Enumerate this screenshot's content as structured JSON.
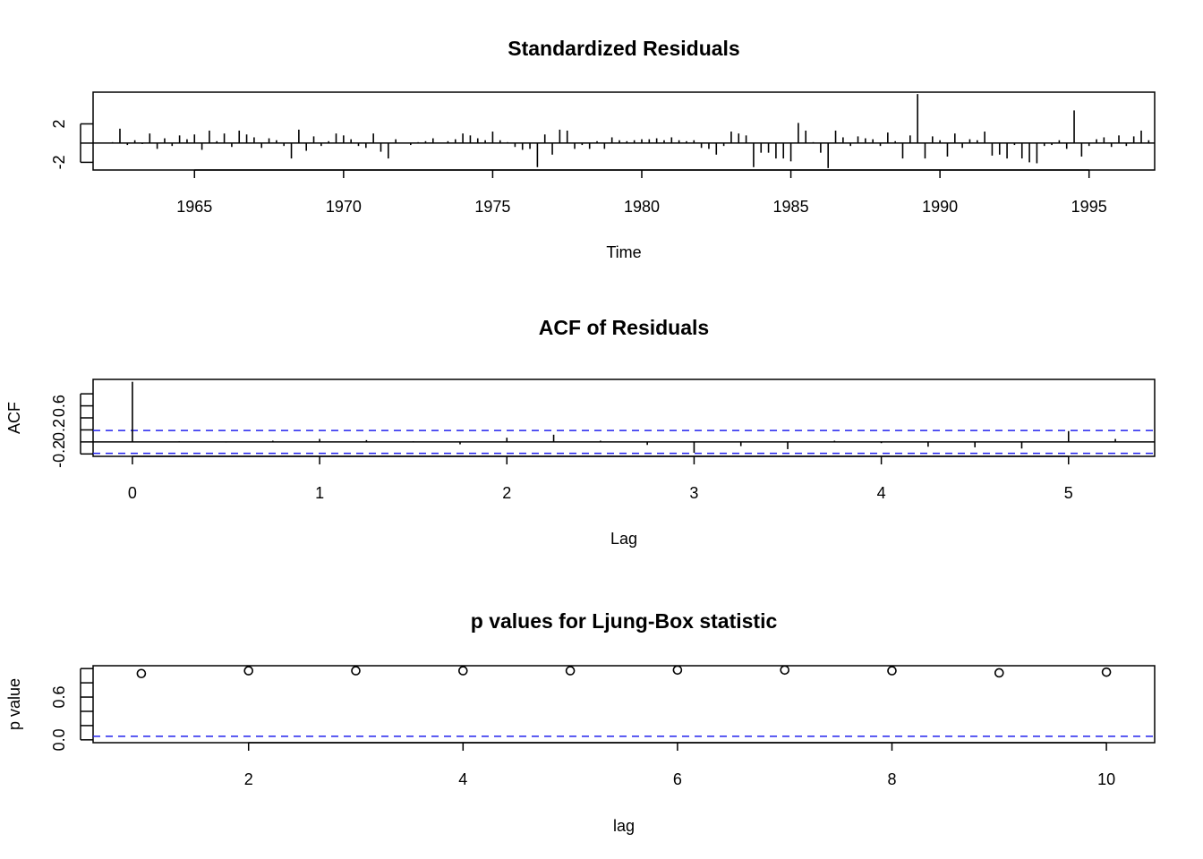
{
  "chart_data": [
    {
      "type": "line",
      "subtype": "residual-spikes",
      "title": "Standardized Residuals",
      "xlabel": "Time",
      "ylabel": "",
      "xlim": [
        1961.6,
        1997.2
      ],
      "ylim": [
        -2.8,
        5.3
      ],
      "xticks": [
        1965,
        1970,
        1975,
        1980,
        1985,
        1990,
        1995
      ],
      "xtick_labels": [
        "1965",
        "1970",
        "1975",
        "1980",
        "1985",
        "1990",
        "1995"
      ],
      "yticks": [
        -2,
        0,
        2
      ],
      "ytick_labels": [
        "-2",
        "",
        "2"
      ],
      "hline": 0,
      "start": 1962.25,
      "step": 0.25,
      "values": [
        0.1,
        1.5,
        -0.2,
        0.3,
        -0.1,
        1.0,
        -0.6,
        0.5,
        -0.3,
        0.8,
        0.4,
        0.9,
        -0.7,
        1.3,
        0.2,
        1.0,
        -0.4,
        1.3,
        0.9,
        0.6,
        -0.5,
        0.5,
        0.3,
        -0.3,
        -1.6,
        1.4,
        -0.8,
        0.7,
        -0.3,
        0.2,
        1.0,
        0.8,
        0.4,
        -0.3,
        -0.5,
        1.0,
        -0.9,
        -1.6,
        0.4,
        0.0,
        -0.2,
        0.1,
        0.2,
        0.5,
        0.0,
        0.2,
        0.4,
        1.0,
        0.8,
        0.5,
        0.3,
        1.2,
        0.3,
        0.1,
        -0.4,
        -0.7,
        -0.6,
        -2.5,
        0.9,
        -1.2,
        1.4,
        1.3,
        -0.6,
        -0.2,
        -0.6,
        0.2,
        -0.6,
        0.6,
        0.3,
        0.2,
        0.3,
        0.4,
        0.4,
        0.5,
        0.3,
        0.6,
        0.3,
        0.2,
        0.3,
        -0.5,
        -0.6,
        -1.2,
        -0.3,
        1.2,
        1.0,
        0.8,
        -2.5,
        -1.0,
        -1.0,
        -1.6,
        -1.6,
        -1.9,
        2.1,
        1.3,
        0.1,
        -1.0,
        -2.6,
        1.3,
        0.6,
        -0.3,
        0.7,
        0.5,
        0.4,
        -0.3,
        1.1,
        0.2,
        -1.6,
        0.8,
        5.1,
        -1.6,
        0.7,
        0.3,
        -1.4,
        1.0,
        -0.5,
        0.4,
        0.3,
        1.2,
        -1.3,
        -1.2,
        -1.6,
        -0.2,
        -1.6,
        -2.0,
        -2.1,
        -0.3,
        -0.2,
        0.3,
        -0.6,
        3.4,
        -1.4,
        -0.3,
        0.4,
        0.6,
        -0.4,
        0.8,
        -0.3,
        0.7,
        1.3,
        0.3
      ]
    },
    {
      "type": "bar",
      "subtype": "acf",
      "title": "ACF of Residuals",
      "xlabel": "Lag",
      "ylabel": "ACF",
      "xlim": [
        -0.21,
        5.46
      ],
      "ylim": [
        -0.24,
        1.04
      ],
      "xticks": [
        0,
        1,
        2,
        3,
        4,
        5
      ],
      "xtick_labels": [
        "0",
        "1",
        "2",
        "3",
        "4",
        "5"
      ],
      "yticks": [
        -0.2,
        0.0,
        0.2,
        0.4,
        0.6,
        0.8
      ],
      "ytick_labels": [
        "-0.2",
        "",
        "0.2",
        "",
        "0.6",
        ""
      ],
      "hline": 0,
      "conf_band": [
        0.19,
        -0.19
      ],
      "lags": [
        0,
        0.25,
        0.5,
        0.75,
        1.0,
        1.25,
        1.5,
        1.75,
        2.0,
        2.25,
        2.5,
        2.75,
        3.0,
        3.25,
        3.5,
        3.75,
        4.0,
        4.25,
        4.5,
        4.75,
        5.0,
        5.25
      ],
      "values": [
        1.0,
        0.01,
        -0.01,
        0.02,
        0.05,
        0.03,
        0.01,
        -0.04,
        0.07,
        0.12,
        0.02,
        -0.05,
        -0.18,
        -0.07,
        -0.12,
        0.02,
        -0.02,
        -0.08,
        -0.09,
        -0.11,
        0.18,
        0.05
      ]
    },
    {
      "type": "scatter",
      "subtype": "ljung-box-pvalues",
      "title": "p values for Ljung-Box statistic",
      "xlabel": "lag",
      "ylabel": "p value",
      "xlim": [
        0.55,
        10.45
      ],
      "ylim": [
        -0.04,
        1.04
      ],
      "xticks": [
        2,
        4,
        6,
        8,
        10
      ],
      "xtick_labels": [
        "2",
        "4",
        "6",
        "8",
        "10"
      ],
      "yticks": [
        0.0,
        0.2,
        0.4,
        0.6,
        0.8,
        1.0
      ],
      "ytick_labels": [
        "0.0",
        "",
        "",
        "0.6",
        "",
        ""
      ],
      "significance_line": 0.05,
      "x": [
        1,
        2,
        3,
        4,
        5,
        6,
        7,
        8,
        9,
        10
      ],
      "values": [
        0.93,
        0.97,
        0.97,
        0.97,
        0.97,
        0.98,
        0.98,
        0.97,
        0.94,
        0.95
      ]
    }
  ]
}
